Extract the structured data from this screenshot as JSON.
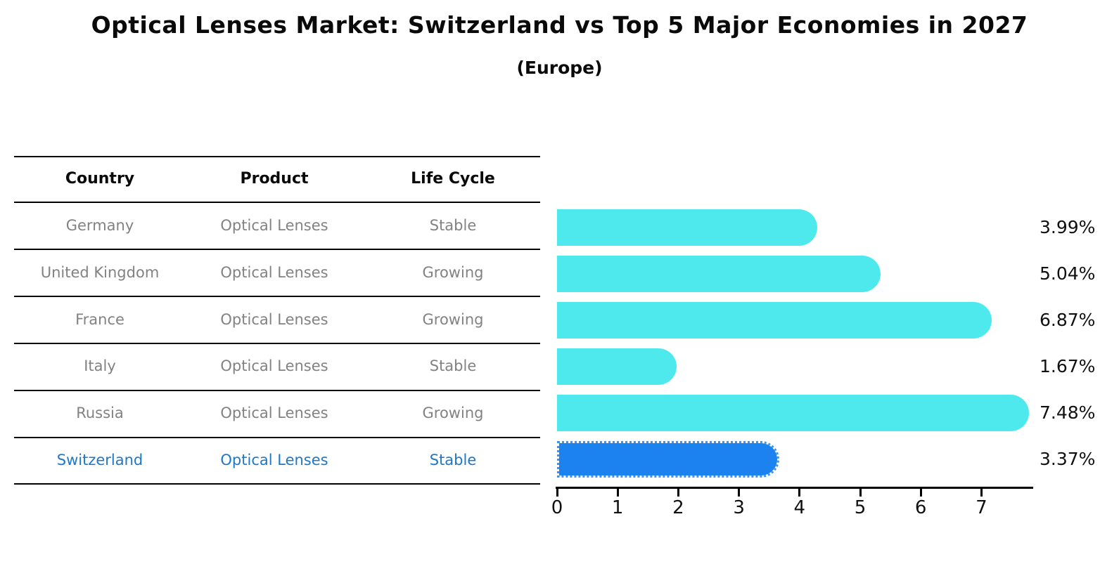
{
  "title": "Optical Lenses Market: Switzerland vs Top 5 Major Economies in 2027",
  "subtitle": "(Europe)",
  "table": {
    "headers": [
      "Country",
      "Product",
      "Life Cycle"
    ],
    "rows": [
      {
        "country": "Germany",
        "product": "Optical Lenses",
        "life_cycle": "Stable",
        "highlight": false
      },
      {
        "country": "United Kingdom",
        "product": "Optical Lenses",
        "life_cycle": "Growing",
        "highlight": false
      },
      {
        "country": "France",
        "product": "Optical Lenses",
        "life_cycle": "Growing",
        "highlight": false
      },
      {
        "country": "Italy",
        "product": "Optical Lenses",
        "life_cycle": "Stable",
        "highlight": false
      },
      {
        "country": "Russia",
        "product": "Optical Lenses",
        "life_cycle": "Growing",
        "highlight": false
      },
      {
        "country": "Switzerland",
        "product": "Optical Lenses",
        "life_cycle": "Stable",
        "highlight": true
      }
    ]
  },
  "chart_data": {
    "type": "bar",
    "orientation": "horizontal",
    "title": "Optical Lenses Market: Switzerland vs Top 5 Major Economies in 2027",
    "subtitle": "(Europe)",
    "categories": [
      "Germany",
      "United Kingdom",
      "France",
      "Italy",
      "Russia",
      "Switzerland"
    ],
    "values": [
      3.99,
      5.04,
      6.87,
      1.67,
      7.48,
      3.37
    ],
    "value_labels": [
      "3.99%",
      "5.04%",
      "6.87%",
      "1.67%",
      "7.48%",
      "3.37%"
    ],
    "unit": "%",
    "x_ticks": [
      "0",
      "1",
      "2",
      "3",
      "4",
      "5",
      "6",
      "7"
    ],
    "xlim": [
      0,
      7.85
    ],
    "grid": false,
    "legend": false,
    "highlight_index": 5,
    "bar_color": "#4DE9EC",
    "highlight_bar_color": "#1C82F0"
  },
  "colors": {
    "bar": "#4DE9EC",
    "highlight_bar": "#1C82F0",
    "highlight_text": "#1E78C8",
    "table_text": "#828282",
    "header_text": "#0A0A0A",
    "axis": "#000000"
  }
}
